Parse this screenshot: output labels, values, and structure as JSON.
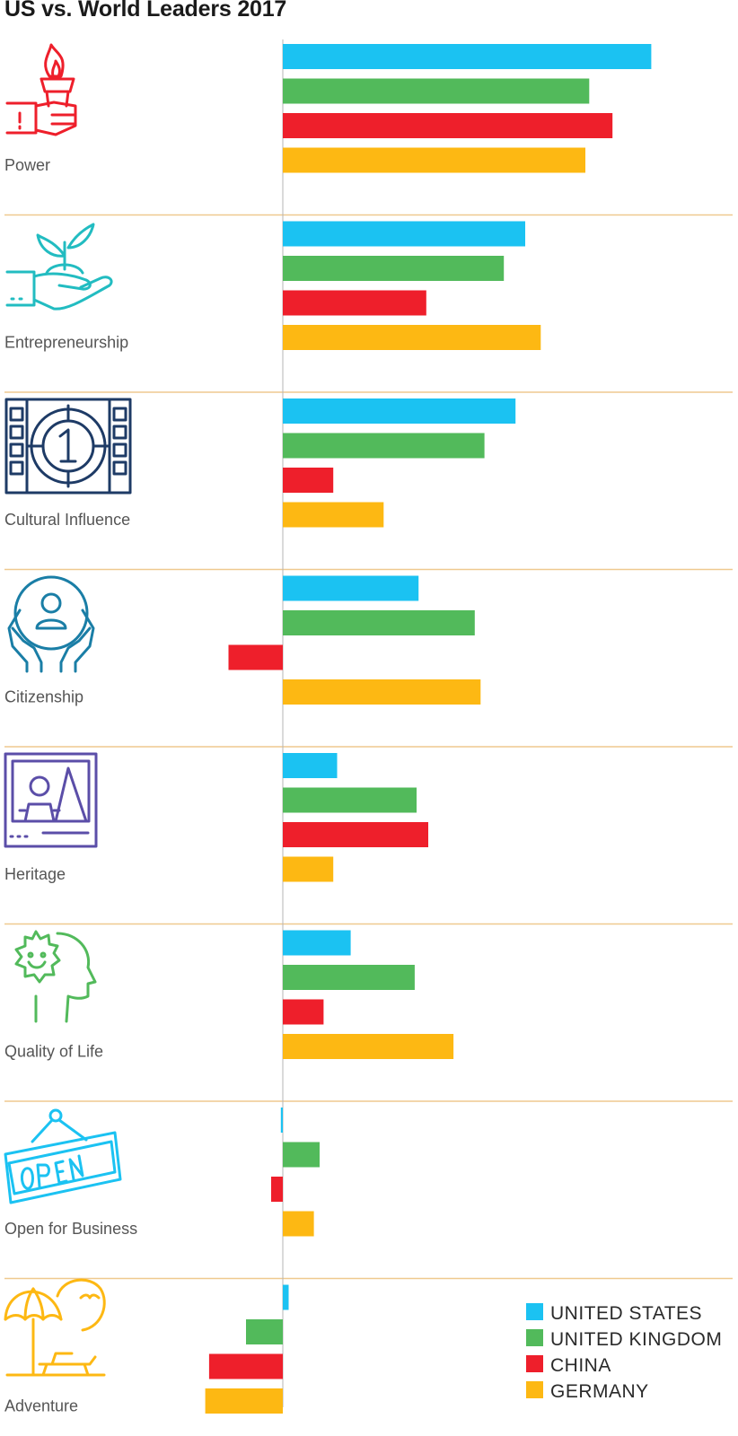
{
  "chart_data": {
    "type": "bar",
    "orientation": "horizontal",
    "title": "US vs. World Leaders 2017",
    "categories": [
      "Power",
      "Entrepreneurship",
      "Cultural Influence",
      "Citizenship",
      "Heritage",
      "Quality of Life",
      "Open for Business",
      "Adventure"
    ],
    "series": [
      {
        "name": "UNITED STATES",
        "color": "#1bc2f2",
        "values": [
          9.5,
          6.25,
          6.0,
          3.5,
          1.4,
          1.75,
          -0.05,
          0.15
        ]
      },
      {
        "name": "UNITED KINGDOM",
        "color": "#52ba5b",
        "values": [
          7.9,
          5.7,
          5.2,
          4.95,
          3.45,
          3.4,
          0.95,
          -0.95
        ]
      },
      {
        "name": "CHINA",
        "color": "#ee1f2b",
        "values": [
          8.5,
          3.7,
          1.3,
          -1.4,
          3.75,
          1.05,
          -0.3,
          -1.9
        ]
      },
      {
        "name": "GERMANY",
        "color": "#fdb813",
        "values": [
          7.8,
          6.65,
          2.6,
          5.1,
          1.3,
          4.4,
          0.8,
          -2.0
        ]
      }
    ],
    "icons": [
      "torch-icon",
      "sprout-hand-icon",
      "film-reel-icon",
      "caring-hands-icon",
      "heritage-picture-icon",
      "happy-head-icon",
      "open-sign-icon",
      "beach-umbrella-icon"
    ],
    "legend_position": "bottom-right",
    "grid": false
  }
}
